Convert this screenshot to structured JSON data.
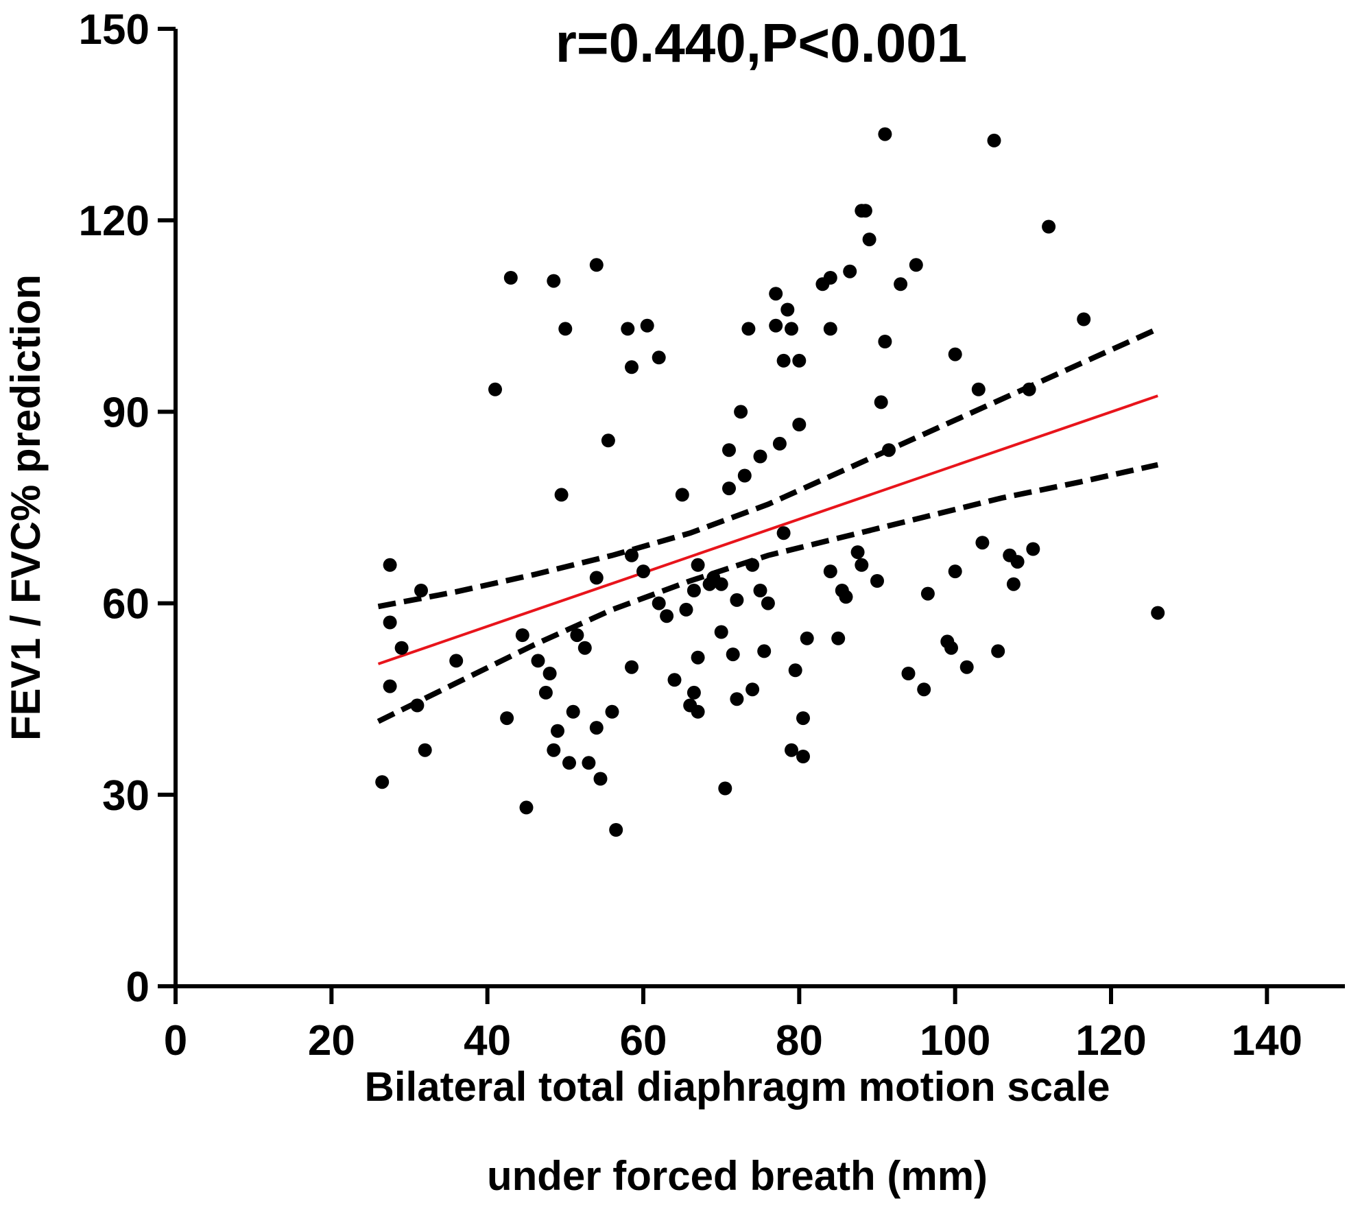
{
  "chart_data": {
    "type": "scatter",
    "title": "r=0.440,P<0.001",
    "xlabel": [
      "Bilateral total diaphragm motion scale",
      "under forced breath (mm)"
    ],
    "ylabel": "FEV1 / FVC% prediction",
    "xlim": [
      0,
      150
    ],
    "ylim": [
      0,
      150
    ],
    "xticks": [
      0,
      20,
      40,
      60,
      80,
      100,
      120,
      140
    ],
    "yticks": [
      0,
      30,
      60,
      90,
      120,
      150
    ],
    "grid": false,
    "colors": {
      "points": "#000000",
      "fit_line": "#e8141b",
      "ci_band": "#000000"
    },
    "fit_line": {
      "x": [
        26,
        126
      ],
      "y": [
        50.5,
        92.5
      ]
    },
    "ci_upper": {
      "x": [
        26,
        36,
        46,
        56,
        66,
        76,
        86,
        96,
        106,
        116,
        126
      ],
      "y": [
        59.5,
        61.8,
        64.5,
        67.5,
        71,
        75.5,
        81,
        86.5,
        92,
        97.5,
        103
      ]
    },
    "ci_lower": {
      "x": [
        26,
        36,
        46,
        56,
        66,
        76,
        86,
        96,
        106,
        116,
        126
      ],
      "y": [
        41.5,
        47.5,
        53.5,
        59,
        63.5,
        67.5,
        70.5,
        73.5,
        76.5,
        79,
        81.7
      ]
    },
    "points": [
      {
        "x": 26.5,
        "y": 32
      },
      {
        "x": 27.5,
        "y": 47
      },
      {
        "x": 27.5,
        "y": 57
      },
      {
        "x": 27.5,
        "y": 66
      },
      {
        "x": 29,
        "y": 53
      },
      {
        "x": 31,
        "y": 44
      },
      {
        "x": 31.5,
        "y": 62
      },
      {
        "x": 32,
        "y": 37
      },
      {
        "x": 36,
        "y": 51
      },
      {
        "x": 41,
        "y": 93.5
      },
      {
        "x": 42.5,
        "y": 42
      },
      {
        "x": 43,
        "y": 111
      },
      {
        "x": 44.5,
        "y": 55
      },
      {
        "x": 45,
        "y": 28
      },
      {
        "x": 46.5,
        "y": 51
      },
      {
        "x": 47.5,
        "y": 46
      },
      {
        "x": 48,
        "y": 49
      },
      {
        "x": 48.5,
        "y": 37
      },
      {
        "x": 48.5,
        "y": 110.5
      },
      {
        "x": 49,
        "y": 40
      },
      {
        "x": 49.5,
        "y": 77
      },
      {
        "x": 50,
        "y": 103
      },
      {
        "x": 50.5,
        "y": 35
      },
      {
        "x": 51,
        "y": 43
      },
      {
        "x": 51.5,
        "y": 55
      },
      {
        "x": 52.5,
        "y": 53
      },
      {
        "x": 53,
        "y": 35
      },
      {
        "x": 54,
        "y": 40.5
      },
      {
        "x": 54,
        "y": 64
      },
      {
        "x": 54,
        "y": 113
      },
      {
        "x": 54.5,
        "y": 32.5
      },
      {
        "x": 55.5,
        "y": 85.5
      },
      {
        "x": 56,
        "y": 43
      },
      {
        "x": 56.5,
        "y": 24.5
      },
      {
        "x": 58,
        "y": 103
      },
      {
        "x": 58.5,
        "y": 97
      },
      {
        "x": 58.5,
        "y": 50
      },
      {
        "x": 58.5,
        "y": 67.5
      },
      {
        "x": 60,
        "y": 65
      },
      {
        "x": 60.5,
        "y": 103.5
      },
      {
        "x": 62,
        "y": 98.5
      },
      {
        "x": 62,
        "y": 60
      },
      {
        "x": 63,
        "y": 58
      },
      {
        "x": 64,
        "y": 48
      },
      {
        "x": 65,
        "y": 77
      },
      {
        "x": 65.5,
        "y": 59
      },
      {
        "x": 66,
        "y": 44
      },
      {
        "x": 66.5,
        "y": 46
      },
      {
        "x": 66.5,
        "y": 62
      },
      {
        "x": 67,
        "y": 51.5
      },
      {
        "x": 67,
        "y": 66
      },
      {
        "x": 67,
        "y": 43
      },
      {
        "x": 68.5,
        "y": 63
      },
      {
        "x": 69,
        "y": 64
      },
      {
        "x": 70,
        "y": 63
      },
      {
        "x": 70,
        "y": 55.5
      },
      {
        "x": 70.5,
        "y": 31
      },
      {
        "x": 71,
        "y": 84
      },
      {
        "x": 71,
        "y": 78
      },
      {
        "x": 71.5,
        "y": 52
      },
      {
        "x": 72,
        "y": 60.5
      },
      {
        "x": 72,
        "y": 45
      },
      {
        "x": 72.5,
        "y": 90
      },
      {
        "x": 73,
        "y": 80
      },
      {
        "x": 73.5,
        "y": 103
      },
      {
        "x": 74,
        "y": 46.5
      },
      {
        "x": 74,
        "y": 66
      },
      {
        "x": 75,
        "y": 62
      },
      {
        "x": 75,
        "y": 83
      },
      {
        "x": 75.5,
        "y": 52.5
      },
      {
        "x": 76,
        "y": 60
      },
      {
        "x": 77,
        "y": 103.5
      },
      {
        "x": 77,
        "y": 108.5
      },
      {
        "x": 77.5,
        "y": 85
      },
      {
        "x": 78,
        "y": 71
      },
      {
        "x": 78,
        "y": 98
      },
      {
        "x": 78.5,
        "y": 106
      },
      {
        "x": 79,
        "y": 103
      },
      {
        "x": 79,
        "y": 37
      },
      {
        "x": 79.5,
        "y": 49.5
      },
      {
        "x": 80,
        "y": 98
      },
      {
        "x": 80,
        "y": 88
      },
      {
        "x": 80.5,
        "y": 42
      },
      {
        "x": 80.5,
        "y": 36
      },
      {
        "x": 81,
        "y": 54.5
      },
      {
        "x": 83,
        "y": 110
      },
      {
        "x": 84,
        "y": 111
      },
      {
        "x": 84,
        "y": 103
      },
      {
        "x": 84,
        "y": 65
      },
      {
        "x": 85,
        "y": 54.5
      },
      {
        "x": 85.5,
        "y": 62
      },
      {
        "x": 86,
        "y": 61
      },
      {
        "x": 86.5,
        "y": 112
      },
      {
        "x": 87.5,
        "y": 68
      },
      {
        "x": 88,
        "y": 66
      },
      {
        "x": 88,
        "y": 121.5
      },
      {
        "x": 88.5,
        "y": 121.5
      },
      {
        "x": 89,
        "y": 117
      },
      {
        "x": 90,
        "y": 63.5
      },
      {
        "x": 90.5,
        "y": 91.5
      },
      {
        "x": 91,
        "y": 101
      },
      {
        "x": 91,
        "y": 133.5
      },
      {
        "x": 91.5,
        "y": 84
      },
      {
        "x": 93,
        "y": 110
      },
      {
        "x": 94,
        "y": 49
      },
      {
        "x": 95,
        "y": 113
      },
      {
        "x": 96,
        "y": 46.5
      },
      {
        "x": 96.5,
        "y": 61.5
      },
      {
        "x": 99,
        "y": 54
      },
      {
        "x": 99.5,
        "y": 53
      },
      {
        "x": 100,
        "y": 99
      },
      {
        "x": 100,
        "y": 65
      },
      {
        "x": 101.5,
        "y": 50
      },
      {
        "x": 103,
        "y": 93.5
      },
      {
        "x": 103.5,
        "y": 69.5
      },
      {
        "x": 105,
        "y": 132.5
      },
      {
        "x": 105.5,
        "y": 52.5
      },
      {
        "x": 107,
        "y": 67.5
      },
      {
        "x": 107.5,
        "y": 63
      },
      {
        "x": 108,
        "y": 66.5
      },
      {
        "x": 109.5,
        "y": 93.5
      },
      {
        "x": 110,
        "y": 68.5
      },
      {
        "x": 112,
        "y": 119
      },
      {
        "x": 116.5,
        "y": 104.5
      },
      {
        "x": 126,
        "y": 58.5
      }
    ]
  }
}
